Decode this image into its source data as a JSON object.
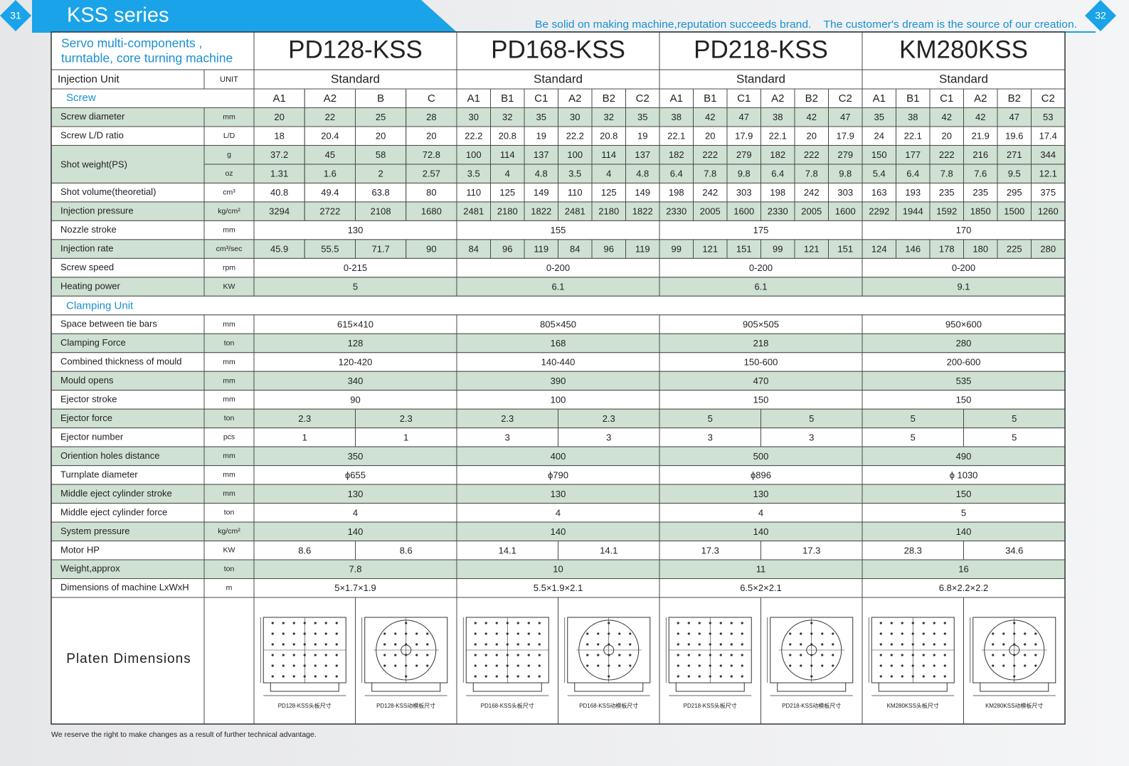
{
  "header": {
    "page_left": "31",
    "page_right": "32",
    "title": "KSS series",
    "slogan": "Be solid on making machine,reputation succeeds brand.    The customer's dream is the source of our creation."
  },
  "table": {
    "machine_type": [
      "Servo multi-components ,",
      "turntable, core turning machine"
    ],
    "models": [
      "PD128-KSS",
      "PD168-KSS",
      "PD218-KSS",
      "KM280KSS"
    ],
    "injection_unit": {
      "label": "Injection Unit",
      "unit": "UNIT",
      "standard": [
        "Standard",
        "Standard",
        "Standard",
        "Standard"
      ]
    },
    "screw": {
      "label": "Screw",
      "types": [
        [
          "A1",
          "A2",
          "B",
          "C"
        ],
        [
          "A1",
          "B1",
          "C1",
          "A2",
          "B2",
          "C2"
        ],
        [
          "A1",
          "B1",
          "C1",
          "A2",
          "B2",
          "C2"
        ],
        [
          "A1",
          "B1",
          "C1",
          "A2",
          "B2",
          "C2"
        ]
      ]
    },
    "rows": [
      {
        "label": "Screw diameter",
        "unit": "mm",
        "values": [
          [
            20,
            22,
            25,
            28
          ],
          [
            30,
            32,
            35,
            30,
            32,
            35
          ],
          [
            38,
            42,
            47,
            38,
            42,
            47
          ],
          [
            35,
            38,
            42,
            42,
            47,
            53
          ]
        ]
      },
      {
        "label": "Screw L/D ratio",
        "unit": "L/D",
        "values": [
          [
            18,
            20.4,
            20,
            20
          ],
          [
            22.2,
            20.8,
            19,
            22.2,
            20.8,
            19
          ],
          [
            22.1,
            20,
            17.9,
            22.1,
            20,
            17.9
          ],
          [
            24,
            22.1,
            20,
            21.9,
            19.6,
            17.4
          ]
        ]
      },
      {
        "label": "Shot weight(PS)",
        "sub": [
          {
            "unit": "g",
            "values": [
              [
                37.2,
                45,
                58,
                72.8
              ],
              [
                100,
                114,
                137,
                100,
                114,
                137
              ],
              [
                182,
                222,
                279,
                182,
                222,
                279
              ],
              [
                150,
                177,
                222,
                216,
                271,
                344
              ]
            ]
          },
          {
            "unit": "oz",
            "values": [
              [
                1.31,
                1.6,
                2,
                2.57
              ],
              [
                3.5,
                4,
                4.8,
                3.5,
                4,
                4.8
              ],
              [
                6.4,
                7.8,
                9.8,
                6.4,
                7.8,
                9.8
              ],
              [
                5.4,
                6.4,
                7.8,
                7.6,
                9.5,
                12.1
              ]
            ]
          }
        ]
      },
      {
        "label": "Shot volume(theoretial)",
        "unit": "cm³",
        "values": [
          [
            40.8,
            49.4,
            63.8,
            80
          ],
          [
            110,
            125,
            149,
            110,
            125,
            149
          ],
          [
            198,
            242,
            303,
            198,
            242,
            303
          ],
          [
            163,
            193,
            235,
            235,
            295,
            375
          ]
        ]
      },
      {
        "label": "Injection pressure",
        "unit": "kg/cm²",
        "values": [
          [
            3294,
            2722,
            2108,
            1680
          ],
          [
            2481,
            2180,
            1822,
            2481,
            2180,
            1822
          ],
          [
            2330,
            2005,
            1600,
            2330,
            2005,
            1600
          ],
          [
            2292,
            1944,
            1592,
            1850,
            1500,
            1260
          ]
        ]
      },
      {
        "label": "Nozzle stroke",
        "unit": "mm",
        "values": [
          [
            130
          ],
          [
            155
          ],
          [
            175
          ],
          [
            170
          ]
        ]
      },
      {
        "label": "Injection rate",
        "unit": "cm³/sec",
        "values": [
          [
            45.9,
            55.5,
            71.7,
            90
          ],
          [
            84,
            96,
            119,
            84,
            96,
            119
          ],
          [
            99,
            121,
            151,
            99,
            121,
            151
          ],
          [
            124,
            146,
            178,
            180,
            225,
            280
          ]
        ]
      },
      {
        "label": "Screw speed",
        "unit": "rpm",
        "values": [
          [
            "0-215"
          ],
          [
            "0-200"
          ],
          [
            "0-200"
          ],
          [
            "0-200"
          ]
        ]
      },
      {
        "label": "Heating power",
        "unit": "KW",
        "values": [
          [
            5
          ],
          [
            6.1
          ],
          [
            6.1
          ],
          [
            9.1
          ]
        ]
      },
      {
        "section": "Clamping Unit"
      },
      {
        "label": "Space between tie bars",
        "unit": "mm",
        "values": [
          [
            "615×410"
          ],
          [
            "805×450"
          ],
          [
            "905×505"
          ],
          [
            "950×600"
          ]
        ]
      },
      {
        "label": "Clamping Force",
        "unit": "ton",
        "values": [
          [
            128
          ],
          [
            168
          ],
          [
            218
          ],
          [
            280
          ]
        ]
      },
      {
        "label": "Combined thickness of mould",
        "unit": "mm",
        "values": [
          [
            "120-420"
          ],
          [
            "140-440"
          ],
          [
            "150-600"
          ],
          [
            "200-600"
          ]
        ]
      },
      {
        "label": "Mould opens",
        "unit": "mm",
        "values": [
          [
            340
          ],
          [
            390
          ],
          [
            470
          ],
          [
            535
          ]
        ]
      },
      {
        "label": "Ejector stroke",
        "unit": "mm",
        "values": [
          [
            90
          ],
          [
            100
          ],
          [
            150
          ],
          [
            150
          ]
        ]
      },
      {
        "label": "Ejector force",
        "unit": "ton",
        "values": [
          [
            2.3,
            2.3
          ],
          [
            2.3,
            2.3
          ],
          [
            5,
            5
          ],
          [
            5,
            5
          ]
        ]
      },
      {
        "label": "Ejector number",
        "unit": "pcs",
        "values": [
          [
            1,
            1
          ],
          [
            3,
            3
          ],
          [
            3,
            3
          ],
          [
            5,
            5
          ]
        ]
      },
      {
        "label": "Oriention holes distance",
        "unit": "mm",
        "values": [
          [
            350
          ],
          [
            400
          ],
          [
            500
          ],
          [
            490
          ]
        ]
      },
      {
        "label": "Turnplate diameter",
        "unit": "mm",
        "values": [
          [
            "ϕ655"
          ],
          [
            "ϕ790"
          ],
          [
            "ϕ896"
          ],
          [
            "ϕ 1030"
          ]
        ]
      },
      {
        "label": "Middle eject cylinder stroke",
        "unit": "mm",
        "values": [
          [
            130
          ],
          [
            130
          ],
          [
            130
          ],
          [
            150
          ]
        ]
      },
      {
        "label": "Middle eject cylinder force",
        "unit": "ton",
        "values": [
          [
            4
          ],
          [
            4
          ],
          [
            4
          ],
          [
            5
          ]
        ]
      },
      {
        "label": "System pressure",
        "unit": "kg/cm²",
        "values": [
          [
            140
          ],
          [
            140
          ],
          [
            140
          ],
          [
            140
          ]
        ]
      },
      {
        "label": "Motor HP",
        "unit": "KW",
        "values": [
          [
            8.6,
            8.6
          ],
          [
            14.1,
            14.1
          ],
          [
            17.3,
            17.3
          ],
          [
            28.3,
            34.6
          ]
        ]
      },
      {
        "label": "Weight,approx",
        "unit": "ton",
        "values": [
          [
            7.8
          ],
          [
            10
          ],
          [
            11
          ],
          [
            16
          ]
        ]
      },
      {
        "label": "Dimensions of machine LxWxH",
        "unit": "m",
        "values": [
          [
            "5×1.7×1.9"
          ],
          [
            "5.5×1.9×2.1"
          ],
          [
            "6.5×2×2.1"
          ],
          [
            "6.8×2.2×2.2"
          ]
        ]
      }
    ],
    "platen": {
      "label": "Platen Dimensions",
      "captions": [
        "PD128-KSS头板尺寸",
        "PD128-KSS动模板尺寸",
        "PD168-KSS头板尺寸",
        "PD168-KSS动模板尺寸",
        "PD218-KSS头板尺寸",
        "PD218-KSS动模板尺寸",
        "KM280KSS头板尺寸",
        "KM280KSS动模板尺寸"
      ]
    }
  },
  "footer": "We reserve the right to make changes as a result of further technical advantage."
}
